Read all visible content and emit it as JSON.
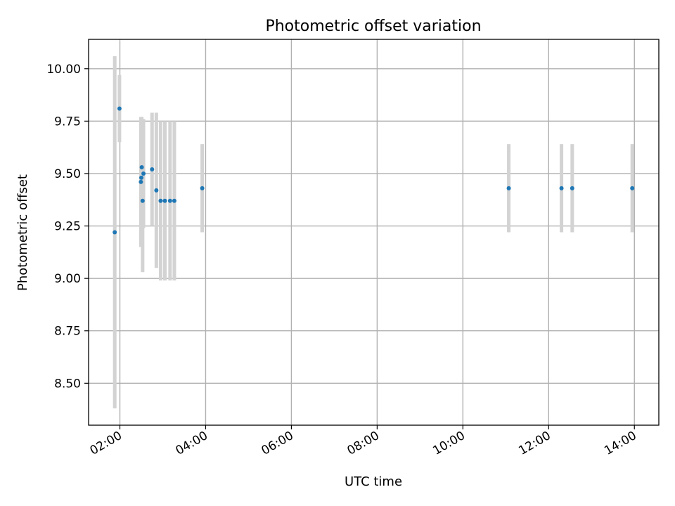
{
  "chart_data": {
    "type": "scatter",
    "title": "Photometric offset variation",
    "xlabel": "UTC time",
    "ylabel": "Photometric offset",
    "x_unit": "hours UTC",
    "xlim": [
      1.27,
      14.57
    ],
    "ylim": [
      8.3,
      10.14
    ],
    "grid": true,
    "x_ticks": [
      {
        "value": 2,
        "label": "02:00"
      },
      {
        "value": 4,
        "label": "04:00"
      },
      {
        "value": 6,
        "label": "06:00"
      },
      {
        "value": 8,
        "label": "08:00"
      },
      {
        "value": 10,
        "label": "10:00"
      },
      {
        "value": 12,
        "label": "12:00"
      },
      {
        "value": 14,
        "label": "14:00"
      }
    ],
    "y_ticks": [
      {
        "value": 8.5,
        "label": "8.50"
      },
      {
        "value": 8.75,
        "label": "8.75"
      },
      {
        "value": 9.0,
        "label": "9.00"
      },
      {
        "value": 9.25,
        "label": "9.25"
      },
      {
        "value": 9.5,
        "label": "9.50"
      },
      {
        "value": 9.75,
        "label": "9.75"
      },
      {
        "value": 10.0,
        "label": "10.00"
      }
    ],
    "series": [
      {
        "name": "offset",
        "marker_color": "#1f77b4",
        "errorbar_color": "#d3d3d3",
        "points": [
          {
            "x": 1.88,
            "y": 9.22,
            "err": 0.84
          },
          {
            "x": 1.99,
            "y": 9.81,
            "err": 0.16
          },
          {
            "x": 2.49,
            "y": 9.46,
            "err": 0.31
          },
          {
            "x": 2.5,
            "y": 9.48,
            "err": 0.28
          },
          {
            "x": 2.51,
            "y": 9.53,
            "err": 0.24
          },
          {
            "x": 2.53,
            "y": 9.37,
            "err": 0.34
          },
          {
            "x": 2.55,
            "y": 9.5,
            "err": 0.26
          },
          {
            "x": 2.75,
            "y": 9.52,
            "err": 0.27
          },
          {
            "x": 2.85,
            "y": 9.42,
            "err": 0.37
          },
          {
            "x": 2.95,
            "y": 9.37,
            "err": 0.38
          },
          {
            "x": 3.05,
            "y": 9.37,
            "err": 0.38
          },
          {
            "x": 3.17,
            "y": 9.37,
            "err": 0.38
          },
          {
            "x": 3.27,
            "y": 9.37,
            "err": 0.38
          },
          {
            "x": 3.92,
            "y": 9.43,
            "err": 0.21
          },
          {
            "x": 11.07,
            "y": 9.43,
            "err": 0.21
          },
          {
            "x": 12.3,
            "y": 9.43,
            "err": 0.21
          },
          {
            "x": 12.55,
            "y": 9.43,
            "err": 0.21
          },
          {
            "x": 13.95,
            "y": 9.43,
            "err": 0.21
          }
        ]
      }
    ]
  }
}
